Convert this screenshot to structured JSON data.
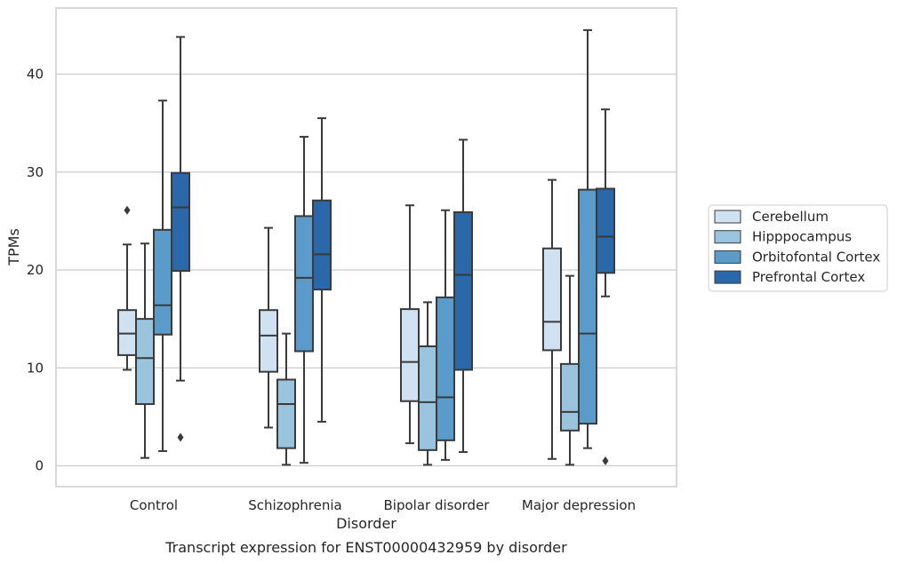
{
  "chart_data": {
    "type": "boxplot",
    "title": "",
    "caption": "Transcript expression for ENST00000432959 by disorder",
    "xlabel": "Disorder",
    "ylabel": "TPMs",
    "ylim": [
      -2,
      47
    ],
    "yticks": [
      0,
      10,
      20,
      30,
      40
    ],
    "grid": true,
    "legend_position": "right",
    "categories": [
      "Control",
      "Schizophrenia",
      "Bipolar disorder",
      "Major depression"
    ],
    "series": [
      {
        "name": "Cerebellum",
        "color": "#d0e1f2",
        "boxes": [
          {
            "whisker_low": 9.8,
            "q1": 11.3,
            "median": 13.5,
            "q3": 15.9,
            "whisker_high": 22.6,
            "outliers": [
              26.1
            ]
          },
          {
            "whisker_low": 3.9,
            "q1": 9.6,
            "median": 13.3,
            "q3": 15.9,
            "whisker_high": 24.3,
            "outliers": []
          },
          {
            "whisker_low": 2.3,
            "q1": 6.6,
            "median": 10.6,
            "q3": 16.0,
            "whisker_high": 26.6,
            "outliers": []
          },
          {
            "whisker_low": 0.7,
            "q1": 11.8,
            "median": 14.7,
            "q3": 22.2,
            "whisker_high": 29.2,
            "outliers": []
          }
        ]
      },
      {
        "name": "Hipppocampus",
        "color": "#9ac4de",
        "boxes": [
          {
            "whisker_low": 0.8,
            "q1": 6.3,
            "median": 11.0,
            "q3": 15.0,
            "whisker_high": 22.7,
            "outliers": []
          },
          {
            "whisker_low": 0.1,
            "q1": 1.8,
            "median": 6.3,
            "q3": 8.8,
            "whisker_high": 13.5,
            "outliers": []
          },
          {
            "whisker_low": 0.1,
            "q1": 1.6,
            "median": 6.5,
            "q3": 12.2,
            "whisker_high": 16.7,
            "outliers": []
          },
          {
            "whisker_low": 0.1,
            "q1": 3.6,
            "median": 5.5,
            "q3": 10.4,
            "whisker_high": 19.4,
            "outliers": []
          }
        ]
      },
      {
        "name": "Orbitofontal Cortex",
        "color": "#5a9bc9",
        "boxes": [
          {
            "whisker_low": 1.5,
            "q1": 13.4,
            "median": 16.4,
            "q3": 24.1,
            "whisker_high": 37.3,
            "outliers": []
          },
          {
            "whisker_low": 0.3,
            "q1": 11.7,
            "median": 19.2,
            "q3": 25.5,
            "whisker_high": 33.6,
            "outliers": []
          },
          {
            "whisker_low": 0.6,
            "q1": 2.6,
            "median": 7.0,
            "q3": 17.2,
            "whisker_high": 26.1,
            "outliers": []
          },
          {
            "whisker_low": 1.8,
            "q1": 4.3,
            "median": 13.5,
            "q3": 28.2,
            "whisker_high": 44.5,
            "outliers": []
          }
        ]
      },
      {
        "name": "Prefrontal Cortex",
        "color": "#2a68aa",
        "boxes": [
          {
            "whisker_low": 8.7,
            "q1": 19.9,
            "median": 26.4,
            "q3": 29.9,
            "whisker_high": 43.8,
            "outliers": [
              2.9
            ]
          },
          {
            "whisker_low": 4.5,
            "q1": 18.0,
            "median": 21.6,
            "q3": 27.1,
            "whisker_high": 35.5,
            "outliers": []
          },
          {
            "whisker_low": 1.4,
            "q1": 9.8,
            "median": 19.5,
            "q3": 25.9,
            "whisker_high": 33.3,
            "outliers": []
          },
          {
            "whisker_low": 17.3,
            "q1": 19.7,
            "median": 23.4,
            "q3": 28.3,
            "whisker_high": 36.4,
            "outliers": [
              0.5
            ]
          }
        ]
      }
    ]
  }
}
